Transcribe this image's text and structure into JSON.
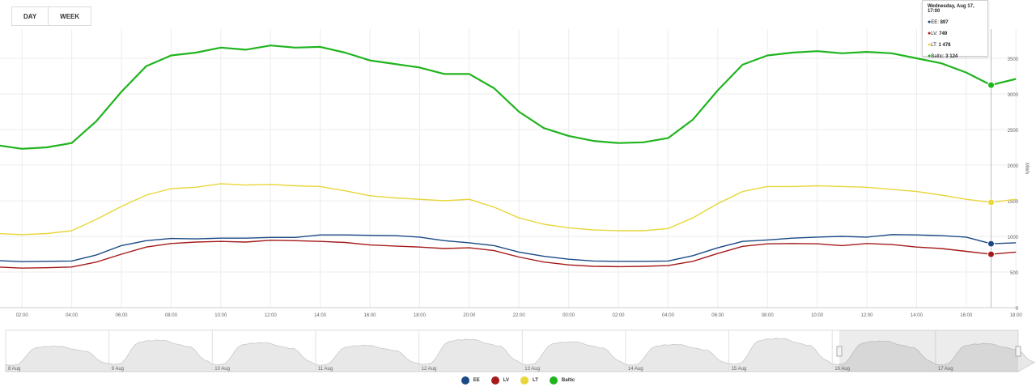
{
  "toolbar": {
    "day_label": "DAY",
    "week_label": "WEEK"
  },
  "tooltip": {
    "title": "Wednesday, Aug 17, 17:00",
    "rows": [
      {
        "name": "EE",
        "value": "897",
        "color": "#1a4a85"
      },
      {
        "name": "LV",
        "value": "749",
        "color": "#a51b1b"
      },
      {
        "name": "LT",
        "value": "1 478",
        "color": "#e8d63a"
      },
      {
        "name": "Baltic",
        "value": "3 124",
        "color": "#20b41f"
      }
    ]
  },
  "navigator": {
    "date_labels": [
      "8 Aug",
      "9 Aug",
      "10 Aug",
      "11 Aug",
      "12 Aug",
      "13 Aug",
      "14 Aug",
      "15 Aug",
      "16 Aug",
      "17 Aug"
    ]
  },
  "legend": [
    {
      "name": "EE",
      "color": "#1a4a85"
    },
    {
      "name": "LV",
      "color": "#a51b1b"
    },
    {
      "name": "LT",
      "color": "#e8d63a"
    },
    {
      "name": "Baltic",
      "color": "#20b41f"
    }
  ],
  "chart_data": {
    "type": "line",
    "x": [
      "01:00",
      "02:00",
      "03:00",
      "04:00",
      "05:00",
      "06:00",
      "07:00",
      "08:00",
      "09:00",
      "10:00",
      "11:00",
      "12:00",
      "13:00",
      "14:00",
      "15:00",
      "16:00",
      "17:00",
      "18:00",
      "19:00",
      "20:00",
      "21:00",
      "22:00",
      "23:00",
      "00:00",
      "01:00",
      "02:00",
      "03:00",
      "04:00",
      "05:00",
      "06:00",
      "07:00",
      "08:00",
      "09:00",
      "10:00",
      "11:00",
      "12:00",
      "13:00",
      "14:00",
      "15:00",
      "16:00",
      "17:00",
      "18:00"
    ],
    "x_tick_labels": [
      "02:00",
      "04:00",
      "06:00",
      "08:00",
      "10:00",
      "12:00",
      "14:00",
      "16:00",
      "18:00",
      "20:00",
      "22:00",
      "00:00",
      "02:00",
      "04:00",
      "06:00",
      "08:00",
      "10:00",
      "12:00",
      "14:00",
      "16:00",
      "18:00"
    ],
    "y_ticks": [
      0,
      500,
      1000,
      1500,
      2000,
      2500,
      3000,
      3500
    ],
    "ylim": [
      0,
      4000
    ],
    "ylabel": "MWh",
    "grid": true,
    "legend_position": "bottom-center",
    "series": [
      {
        "name": "Baltic",
        "color": "#20b41f",
        "values": [
          2280,
          2230,
          2250,
          2310,
          2620,
          3030,
          3390,
          3540,
          3580,
          3650,
          3620,
          3680,
          3650,
          3660,
          3580,
          3470,
          3420,
          3370,
          3280,
          3280,
          3080,
          2750,
          2520,
          2410,
          2340,
          2310,
          2320,
          2380,
          2640,
          3050,
          3410,
          3540,
          3580,
          3600,
          3570,
          3590,
          3570,
          3500,
          3430,
          3300,
          3124,
          3210
        ]
      },
      {
        "name": "LT",
        "color": "#e8d63a",
        "values": [
          1040,
          1025,
          1040,
          1080,
          1240,
          1420,
          1580,
          1670,
          1690,
          1740,
          1720,
          1730,
          1710,
          1700,
          1640,
          1570,
          1540,
          1520,
          1500,
          1520,
          1410,
          1260,
          1170,
          1120,
          1090,
          1080,
          1080,
          1110,
          1260,
          1460,
          1630,
          1700,
          1700,
          1710,
          1700,
          1690,
          1660,
          1630,
          1580,
          1520,
          1478,
          1520
        ]
      },
      {
        "name": "EE",
        "color": "#1a4a85",
        "values": [
          660,
          645,
          650,
          655,
          740,
          870,
          940,
          970,
          965,
          975,
          975,
          985,
          985,
          1020,
          1020,
          1015,
          1010,
          990,
          940,
          910,
          870,
          780,
          720,
          680,
          655,
          650,
          650,
          655,
          730,
          840,
          930,
          950,
          975,
          990,
          1000,
          990,
          1025,
          1020,
          1010,
          990,
          897,
          910
        ]
      },
      {
        "name": "LV",
        "color": "#a51b1b",
        "values": [
          570,
          555,
          560,
          570,
          640,
          750,
          850,
          900,
          920,
          930,
          920,
          945,
          940,
          930,
          915,
          880,
          865,
          850,
          830,
          840,
          800,
          710,
          640,
          600,
          580,
          575,
          580,
          590,
          650,
          760,
          860,
          895,
          900,
          895,
          870,
          900,
          885,
          850,
          830,
          790,
          749,
          780
        ]
      }
    ],
    "highlight_index": 40,
    "navigator_days": [
      "8 Aug",
      "9 Aug",
      "10 Aug",
      "11 Aug",
      "12 Aug",
      "13 Aug",
      "14 Aug",
      "15 Aug",
      "16 Aug",
      "17 Aug"
    ]
  }
}
